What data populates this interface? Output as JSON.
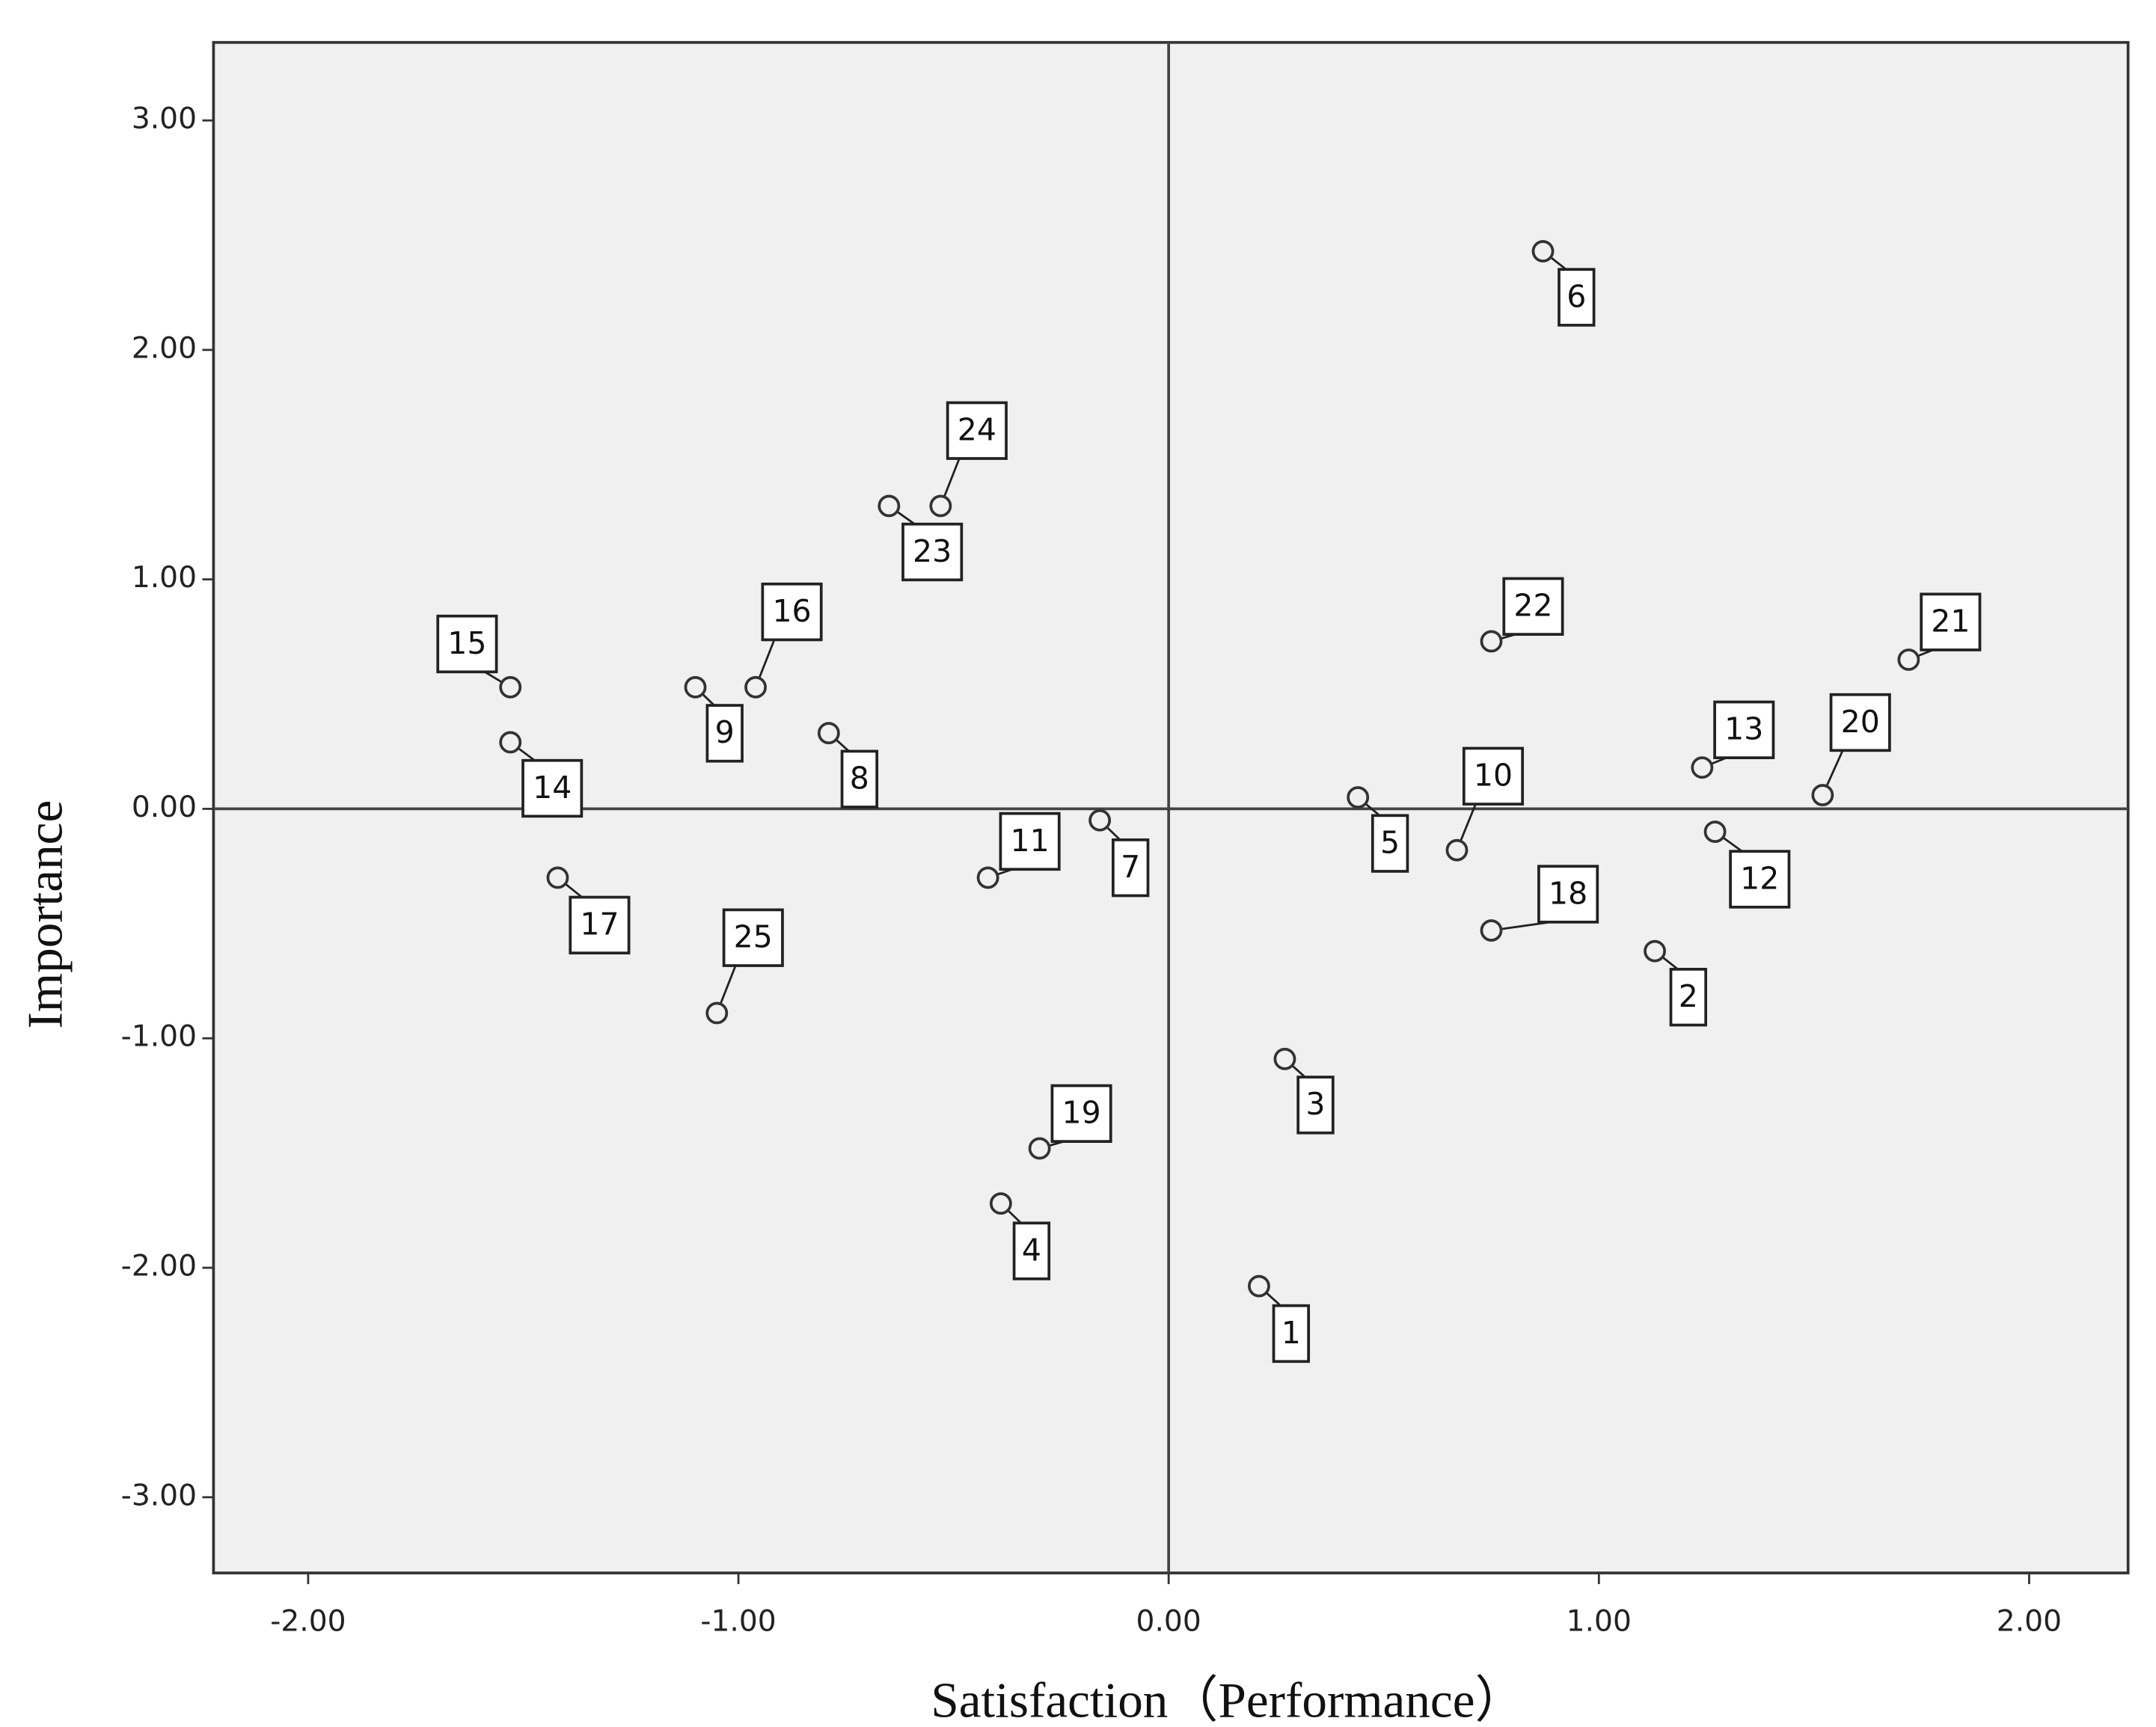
{
  "chart_data": {
    "type": "scatter",
    "x_label": "Satisfaction（Performance）",
    "y_label": "Importance",
    "labels": [
      "1",
      "2",
      "3",
      "4",
      "5",
      "6",
      "7",
      "8",
      "9",
      "10",
      "11",
      "12",
      "13",
      "14",
      "15",
      "16",
      "17",
      "18",
      "19",
      "20",
      "21",
      "22",
      "23",
      "24",
      "25"
    ],
    "x": [
      0.21,
      1.13,
      0.27,
      -0.39,
      0.44,
      0.87,
      -0.16,
      -0.79,
      -1.1,
      0.67,
      -0.42,
      1.27,
      1.24,
      -1.53,
      -1.53,
      -0.96,
      -1.42,
      0.75,
      -0.3,
      1.52,
      1.72,
      0.75,
      -0.65,
      -0.53,
      -1.05
    ],
    "values": [
      -2.08,
      -0.62,
      -1.09,
      -1.72,
      0.05,
      2.43,
      -0.05,
      0.33,
      0.53,
      -0.18,
      -0.3,
      -0.1,
      0.18,
      0.29,
      0.53,
      0.53,
      -0.3,
      -0.53,
      -1.48,
      0.06,
      0.65,
      0.73,
      1.32,
      1.32,
      -0.89
    ],
    "xlim": [
      -2.22,
      2.23
    ],
    "ylim": [
      -3.33,
      3.34
    ],
    "xticks": [
      {
        "value": -2,
        "label": "-2.00"
      },
      {
        "value": -1,
        "label": "-1.00"
      },
      {
        "value": 0,
        "label": "0.00"
      },
      {
        "value": 1,
        "label": "1.00"
      },
      {
        "value": 2,
        "label": "2.00"
      }
    ],
    "yticks": [
      {
        "value": -3,
        "label": "-3.00"
      },
      {
        "value": -2,
        "label": "-2.00"
      },
      {
        "value": -1,
        "label": "-1.00"
      },
      {
        "value": 0,
        "label": "0.00"
      },
      {
        "value": 1,
        "label": "1.00"
      },
      {
        "value": 2,
        "label": "2.00"
      },
      {
        "value": 3,
        "label": "3.00"
      }
    ]
  }
}
